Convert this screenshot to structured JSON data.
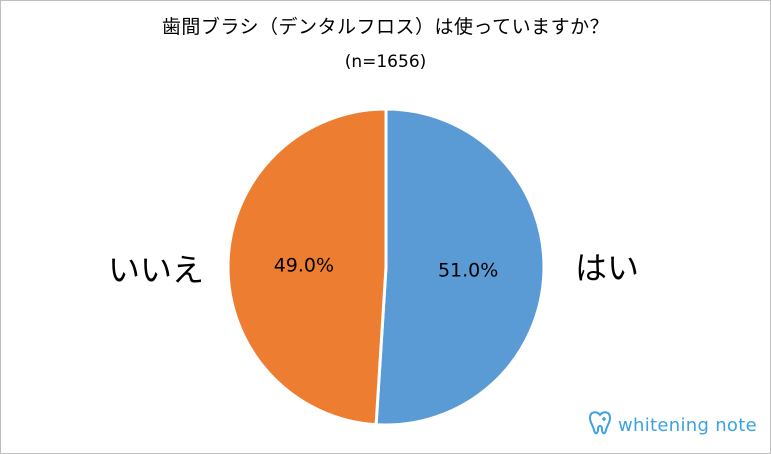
{
  "chart_data": {
    "type": "pie",
    "title": "歯間ブラシ（デンタルフロス）は使っていますか？",
    "subtitle": "(n=1656)",
    "slices": [
      {
        "label": "はい",
        "value": 51.0,
        "value_label": "51.0%",
        "color": "#5b9bd5"
      },
      {
        "label": "いいえ",
        "value": 49.0,
        "value_label": "49.0%",
        "color": "#ed7d31"
      }
    ],
    "start_angle": "12 o'clock",
    "direction": "clockwise"
  },
  "labels": {
    "left": "いいえ",
    "right": "はい"
  },
  "watermark": {
    "text": "whitening note",
    "color": "#3aa3e0",
    "icon": "tooth-icon"
  }
}
